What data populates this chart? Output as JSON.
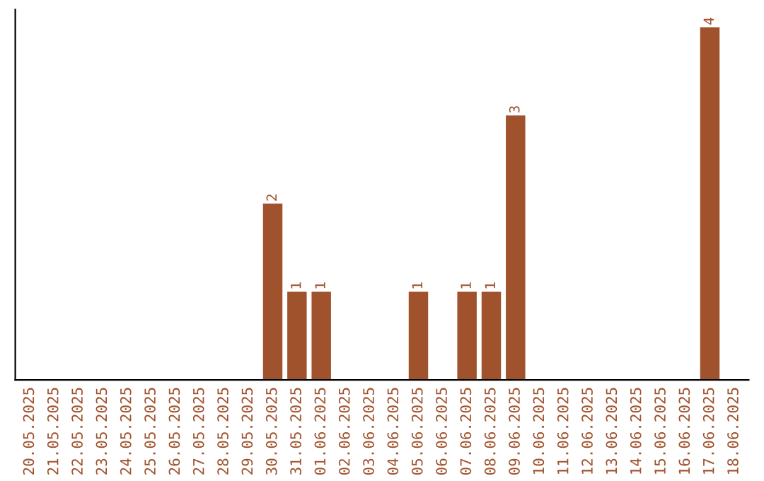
{
  "chart_data": {
    "type": "bar",
    "categories": [
      "20.05.2025",
      "21.05.2025",
      "22.05.2025",
      "23.05.2025",
      "24.05.2025",
      "25.05.2025",
      "26.05.2025",
      "27.05.2025",
      "28.05.2025",
      "29.05.2025",
      "30.05.2025",
      "31.05.2025",
      "01.06.2025",
      "02.06.2025",
      "03.06.2025",
      "04.06.2025",
      "05.06.2025",
      "06.06.2025",
      "07.06.2025",
      "08.06.2025",
      "09.06.2025",
      "10.06.2025",
      "11.06.2025",
      "12.06.2025",
      "13.06.2025",
      "14.06.2025",
      "15.06.2025",
      "16.06.2025",
      "17.06.2025",
      "18.06.2025"
    ],
    "values": [
      0,
      0,
      0,
      0,
      0,
      0,
      0,
      0,
      0,
      0,
      2,
      1,
      1,
      0,
      0,
      0,
      1,
      0,
      1,
      1,
      3,
      0,
      0,
      0,
      0,
      0,
      0,
      0,
      4,
      0
    ],
    "value_labels": [
      null,
      null,
      null,
      null,
      null,
      null,
      null,
      null,
      null,
      null,
      "2",
      "1",
      "1",
      null,
      null,
      null,
      "1",
      null,
      "1",
      "1",
      "3",
      null,
      null,
      null,
      null,
      null,
      null,
      null,
      "4",
      null
    ],
    "color": "#a0522d",
    "tick_labels": "x",
    "grid": false
  }
}
